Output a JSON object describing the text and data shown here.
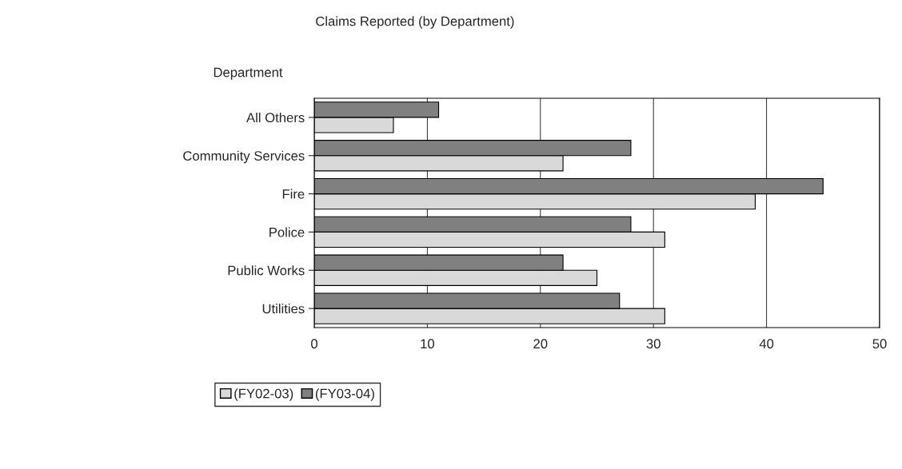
{
  "chart_data": {
    "type": "bar",
    "orientation": "horizontal",
    "title": "Claims Reported (by Department)",
    "ylabel": "Department",
    "categories": [
      "All Others",
      "Community Services",
      "Fire",
      "Police",
      "Public Works",
      "Utilities"
    ],
    "series": [
      {
        "name": "(FY02-03)",
        "color": "#d9d9d9",
        "values": [
          7,
          22,
          39,
          31,
          25,
          31
        ]
      },
      {
        "name": "(FY03-04)",
        "color": "#808080",
        "values": [
          11,
          28,
          45,
          28,
          22,
          27
        ]
      }
    ],
    "xlim": [
      0,
      50
    ],
    "xticks": [
      0,
      10,
      20,
      30,
      40,
      50
    ],
    "grid": "x",
    "legend": "bottom"
  }
}
